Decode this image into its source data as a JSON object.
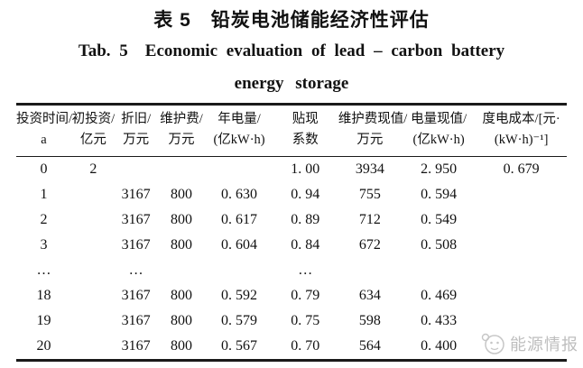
{
  "title": {
    "zh": "表 5　铅炭电池储能经济性评估",
    "en_line1": "Tab. 5　Economic evaluation of lead – carbon battery",
    "en_line2": "energy storage"
  },
  "table": {
    "columns": [
      {
        "line1": "投资时间/",
        "line2": "a"
      },
      {
        "line1": "初投资/",
        "line2": "亿元"
      },
      {
        "line1": "折旧/",
        "line2": "万元"
      },
      {
        "line1": "维护费/",
        "line2": "万元"
      },
      {
        "line1": "年电量/",
        "line2": "(亿kW·h)"
      },
      {
        "line1": "贴现",
        "line2": "系数"
      },
      {
        "line1": "维护费现值/",
        "line2": "万元"
      },
      {
        "line1": "电量现值/",
        "line2": "(亿kW·h)"
      },
      {
        "line1": "度电成本/[元·",
        "line2": "(kW·h)⁻¹]"
      }
    ],
    "rows": [
      [
        "0",
        "2",
        "",
        "",
        "",
        "1. 00",
        "3934",
        "2. 950",
        "0. 679"
      ],
      [
        "1",
        "",
        "3167",
        "800",
        "0. 630",
        "0. 94",
        "755",
        "0. 594",
        ""
      ],
      [
        "2",
        "",
        "3167",
        "800",
        "0. 617",
        "0. 89",
        "712",
        "0. 549",
        ""
      ],
      [
        "3",
        "",
        "3167",
        "800",
        "0. 604",
        "0. 84",
        "672",
        "0. 508",
        ""
      ],
      [
        "…",
        "",
        "…",
        "",
        "",
        "…",
        "",
        "",
        ""
      ],
      [
        "18",
        "",
        "3167",
        "800",
        "0. 592",
        "0. 79",
        "634",
        "0. 469",
        ""
      ],
      [
        "19",
        "",
        "3167",
        "800",
        "0. 579",
        "0. 75",
        "598",
        "0. 433",
        ""
      ],
      [
        "20",
        "",
        "3167",
        "800",
        "0. 567",
        "0. 70",
        "564",
        "0. 400",
        ""
      ]
    ]
  },
  "watermark": {
    "text": "能源情报"
  },
  "colors": {
    "text": "#111111",
    "rule": "#1a1a1a",
    "watermark": "#aeaeae"
  }
}
